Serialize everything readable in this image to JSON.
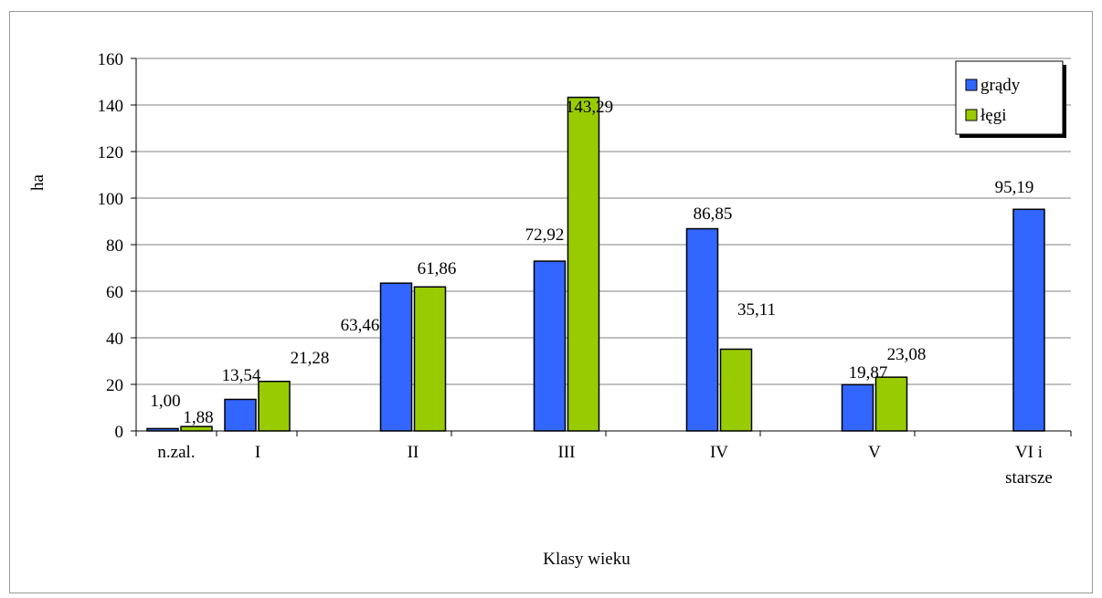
{
  "chart_data": {
    "type": "bar",
    "title": "",
    "xlabel": "Klasy wieku",
    "ylabel": "ha",
    "ylim": [
      0,
      160
    ],
    "yticks": [
      0,
      20,
      40,
      60,
      80,
      100,
      120,
      140,
      160
    ],
    "categories": [
      "n.zal.",
      "I",
      "II",
      "III",
      "IV",
      "V",
      "VI i starsze"
    ],
    "category_lines": [
      [
        "n.zal."
      ],
      [
        "I"
      ],
      [
        "II"
      ],
      [
        "III"
      ],
      [
        "IV"
      ],
      [
        "V"
      ],
      [
        "VI i",
        "starsze"
      ]
    ],
    "series": [
      {
        "name": "grądy",
        "color": "#3366ff",
        "values": [
          1.0,
          13.54,
          63.46,
          72.92,
          86.85,
          19.87,
          95.19
        ],
        "labels": [
          "1,00",
          "13,54",
          "63,46",
          "72,92",
          "86,85",
          "19,87",
          "95,19"
        ]
      },
      {
        "name": "łęgi",
        "color": "#99cc00",
        "values": [
          1.88,
          21.28,
          61.86,
          143.29,
          35.11,
          23.08,
          null
        ],
        "labels": [
          "1,88",
          "21,28",
          "61,86",
          "143,29",
          "35,11",
          "23,08",
          ""
        ]
      }
    ],
    "grid": true,
    "legend_position": "top-right"
  }
}
